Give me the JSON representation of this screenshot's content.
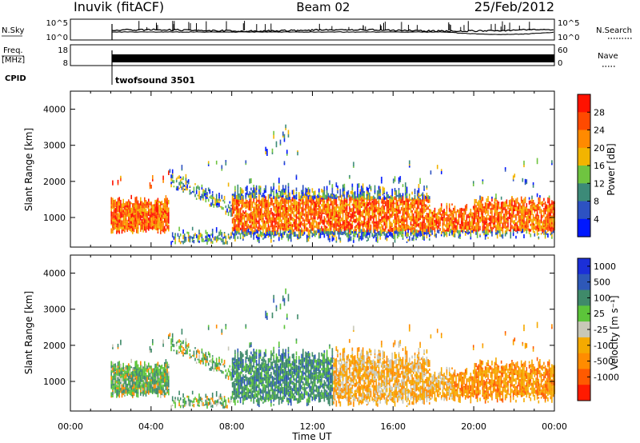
{
  "header": {
    "station": "Inuvik (fitACF)",
    "beam": "Beam 02",
    "date": "25/Feb/2012"
  },
  "top_panels": {
    "nsky_label": "N.Sky",
    "nsky_ticks": [
      "10^5",
      "10^0"
    ],
    "nsearch_label": "N.Search",
    "nsearch_ticks": [
      "10^5",
      "10^0"
    ],
    "freq_label_line1": "Freq.",
    "freq_label_line2": "[MHz]",
    "freq_ticks": [
      "18",
      "8"
    ],
    "nave_label": "Nave",
    "nave_ticks": [
      "60",
      "0"
    ],
    "cpid_label": "CPID",
    "cpid_value": "twofsound 3501"
  },
  "colors": {
    "power_scale": [
      "#0018ff",
      "#2d52c2",
      "#3c8a78",
      "#6fc440",
      "#f2b400",
      "#ff8a00",
      "#ff4a00",
      "#ff1200"
    ],
    "velocity_scale": [
      "#ff1a00",
      "#ff5a00",
      "#ff8c00",
      "#f5aa00",
      "#c8c8b8",
      "#5cc43a",
      "#3f8a6a",
      "#2e58b8",
      "#1b2fd8"
    ]
  },
  "chart_data": [
    {
      "type": "heatmap",
      "title": "Power",
      "ylabel": "Slant Range [km]",
      "xlabel": "",
      "yticks": [
        "1000",
        "2000",
        "3000",
        "4000"
      ],
      "ylim": [
        180,
        4500
      ],
      "colorbar_label": "Power [dB]",
      "colorbar_ticks": [
        "4",
        "8",
        "12",
        "16",
        "20",
        "24",
        "28"
      ],
      "clim": [
        0,
        32
      ]
    },
    {
      "type": "heatmap",
      "title": "Velocity",
      "ylabel": "Slant Range [km]",
      "xlabel": "Time UT",
      "xticks": [
        "00:00",
        "04:00",
        "08:00",
        "12:00",
        "16:00",
        "20:00",
        "00:00"
      ],
      "yticks": [
        "1000",
        "2000",
        "3000",
        "4000"
      ],
      "ylim": [
        180,
        4500
      ],
      "colorbar_label": "Velocity [m s⁻¹]",
      "colorbar_ticks": [
        "1000",
        "500",
        "100",
        "25",
        "-25",
        "-100",
        "-500",
        "-1000"
      ]
    }
  ]
}
